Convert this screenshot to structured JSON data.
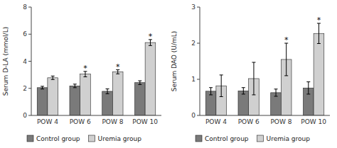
{
  "chart_data": [
    {
      "type": "bar",
      "ylabel": "Serum D-LA (mmol/L)",
      "categories": [
        "POW 4",
        "POW 6",
        "POW 8",
        "POW 10"
      ],
      "series": [
        {
          "name": "Control group",
          "color": "#7a7a7a",
          "values": [
            2.05,
            2.18,
            1.78,
            2.42
          ],
          "errors": [
            0.1,
            0.13,
            0.18,
            0.14
          ]
        },
        {
          "name": "Uremia group",
          "color": "#d0d0d0",
          "values": [
            2.78,
            3.05,
            3.22,
            5.38
          ],
          "errors": [
            0.13,
            0.2,
            0.15,
            0.22
          ]
        }
      ],
      "ylim": [
        0,
        8
      ],
      "yticks": [
        0,
        2,
        4,
        6,
        8
      ],
      "annotations": [
        {
          "text": "*",
          "category": "POW 6",
          "series": "Uremia group"
        },
        {
          "text": "*",
          "category": "POW 8",
          "series": "Uremia group"
        },
        {
          "text": "*",
          "category": "POW 10",
          "series": "Uremia group"
        }
      ],
      "legend": "bottom"
    },
    {
      "type": "bar",
      "ylabel": "Serum DAO (U/mL)",
      "categories": [
        "POW 4",
        "POW 6",
        "POW 8",
        "POW 10"
      ],
      "series": [
        {
          "name": "Control group",
          "color": "#7a7a7a",
          "values": [
            0.67,
            0.68,
            0.63,
            0.76
          ],
          "errors": [
            0.1,
            0.09,
            0.1,
            0.17
          ]
        },
        {
          "name": "Uremia group",
          "color": "#d0d0d0",
          "values": [
            0.82,
            1.02,
            1.55,
            2.27
          ],
          "errors": [
            0.3,
            0.45,
            0.45,
            0.28
          ]
        }
      ],
      "ylim": [
        0,
        3
      ],
      "yticks": [
        0,
        1,
        2,
        3
      ],
      "annotations": [
        {
          "text": "*",
          "category": "POW 8",
          "series": "Uremia group"
        },
        {
          "text": "*",
          "category": "POW 10",
          "series": "Uremia group"
        }
      ],
      "legend": "bottom"
    }
  ]
}
